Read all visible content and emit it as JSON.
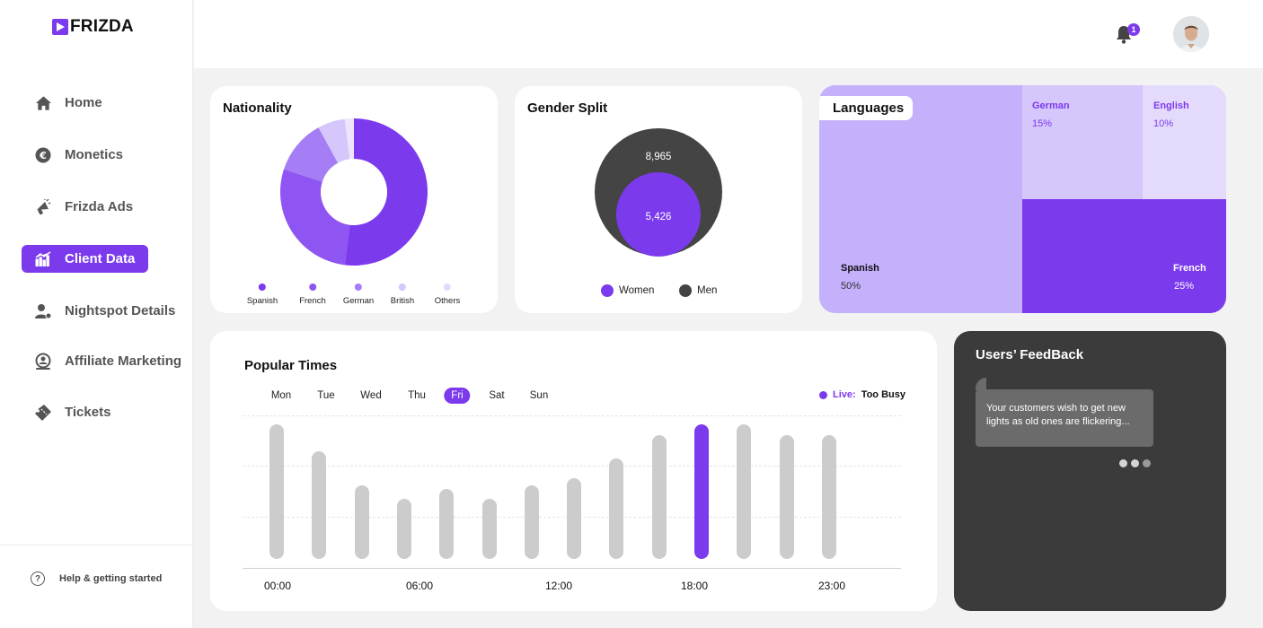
{
  "brand": {
    "name": "FRIZDA",
    "accent": "#7c3aed"
  },
  "sidebar": {
    "items": [
      {
        "label": "Home",
        "icon": "home-icon"
      },
      {
        "label": "Monetics",
        "icon": "euro-icon"
      },
      {
        "label": "Frizda Ads",
        "icon": "megaphone-icon"
      },
      {
        "label": "Client Data",
        "icon": "chart-icon",
        "active": true
      },
      {
        "label": "Nightspot Details",
        "icon": "user-settings-icon"
      },
      {
        "label": "Affiliate Marketing",
        "icon": "affiliate-icon"
      },
      {
        "label": "Tickets",
        "icon": "ticket-icon"
      }
    ],
    "help": "Help & getting started"
  },
  "header": {
    "notification_count": "1"
  },
  "nationality": {
    "title": "Nationality",
    "legend": [
      "Spanish",
      "French",
      "German",
      "British",
      "Others"
    ]
  },
  "gender": {
    "title": "Gender Split",
    "men_value": "8,965",
    "women_value": "5,426",
    "legend": [
      "Women",
      "Men"
    ]
  },
  "languages": {
    "title": "Languages",
    "tiles": [
      {
        "name": "Spanish",
        "value": "50%"
      },
      {
        "name": "German",
        "value": "15%"
      },
      {
        "name": "English",
        "value": "10%"
      },
      {
        "name": "French",
        "value": "25%"
      }
    ]
  },
  "popular_times": {
    "title": "Popular Times",
    "days": [
      "Mon",
      "Tue",
      "Wed",
      "Thu",
      "Fri",
      "Sat",
      "Sun"
    ],
    "active_day": "Fri",
    "live_label": "Live:",
    "live_value": "Too Busy",
    "ticks": [
      "00:00",
      "06:00",
      "12:00",
      "18:00",
      "23:00"
    ]
  },
  "feedback": {
    "title": "Users’ FeedBack",
    "message": "Your customers wish to get new lights as old ones are flickering..."
  },
  "chart_data": [
    {
      "type": "pie",
      "categories": [
        "Spanish",
        "French",
        "German",
        "British",
        "Others"
      ],
      "values": [
        52,
        28,
        12,
        6,
        2
      ],
      "colors": [
        "#7c3aed",
        "#8f55f2",
        "#a57df5",
        "#d5c6fb",
        "#ece5fd"
      ]
    },
    {
      "type": "bar",
      "categories": [
        "00:00",
        "",
        "",
        "",
        "",
        "06:00",
        "",
        "12:00",
        "",
        "",
        "18:00",
        "",
        "",
        "23:00"
      ],
      "values": [
        100,
        80,
        55,
        45,
        52,
        45,
        55,
        60,
        75,
        92,
        100,
        100,
        92,
        92
      ],
      "highlight_index": 10,
      "ylim": [
        0,
        100
      ]
    }
  ]
}
